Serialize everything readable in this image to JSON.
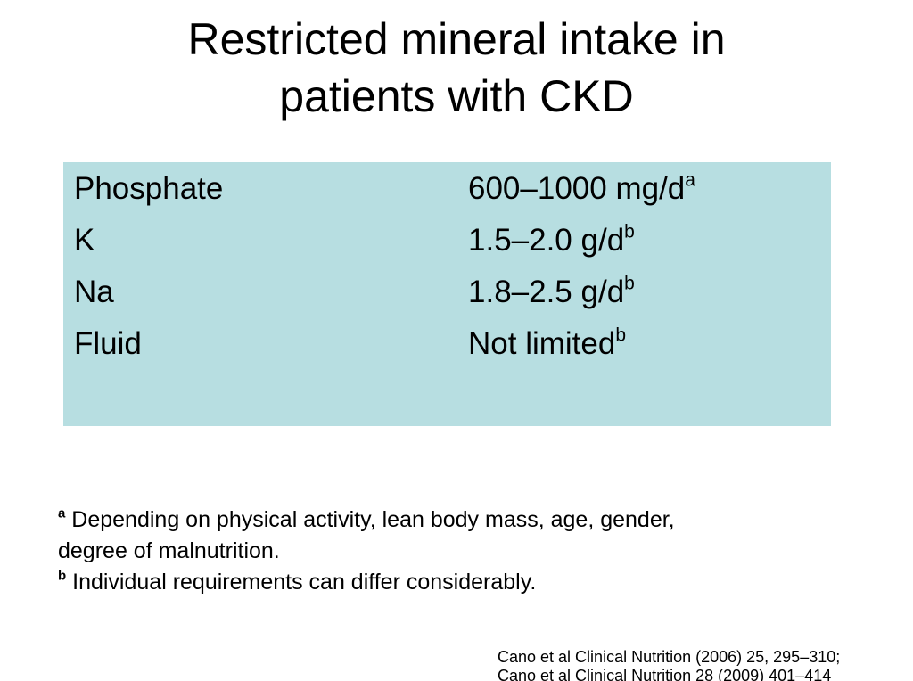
{
  "slide": {
    "title_line1": "Restricted mineral intake in",
    "title_line2": "patients with CKD"
  },
  "table": {
    "background": "#b7dee1",
    "rows": [
      {
        "label": "Phosphate",
        "value": "600–1000 mg/d",
        "note": "a"
      },
      {
        "label": "K",
        "value": "1.5–2.0 g/d",
        "note": "b"
      },
      {
        "label": "Na",
        "value": "1.8–2.5 g/d",
        "note": "b"
      },
      {
        "label": "Fluid",
        "value": "Not limited",
        "note": "b"
      }
    ]
  },
  "footnotes": {
    "a_marker": "a",
    "a_text": " Depending on physical activity, lean body mass, age, gender,",
    "a_text2": "degree of malnutrition.",
    "b_marker": "b",
    "b_text": " Individual requirements can differ considerably."
  },
  "citation": {
    "line1": "Cano et al Clinical Nutrition (2006) 25, 295–310;",
    "line2": "Cano et al Clinical Nutrition 28 (2009) 401–414"
  }
}
